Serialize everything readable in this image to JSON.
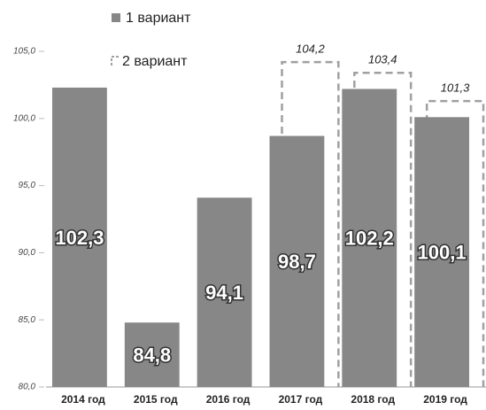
{
  "chart_data": {
    "type": "bar",
    "categories": [
      "2014 год",
      "2015 год",
      "2016 год",
      "2017 год",
      "2018 год",
      "2019 год"
    ],
    "series": [
      {
        "name": "1 вариант",
        "color": "#878787",
        "values": [
          102.3,
          84.8,
          94.1,
          98.7,
          102.2,
          100.1
        ],
        "value_labels": [
          "102,3",
          "84,8",
          "94,1",
          "98,7",
          "102,2",
          "100,1"
        ]
      },
      {
        "name": "2 вариант",
        "color": "#a0a0a0",
        "values": [
          null,
          null,
          null,
          104.2,
          103.4,
          101.3
        ],
        "value_labels": [
          null,
          null,
          null,
          "104,2",
          "103,4",
          "101,3"
        ]
      }
    ],
    "ylim": [
      80,
      105
    ],
    "yticks": [
      {
        "value": 80,
        "label": "80,0"
      },
      {
        "value": 85,
        "label": "85,0"
      },
      {
        "value": 90,
        "label": "90,0"
      },
      {
        "value": 95,
        "label": "95,0"
      },
      {
        "value": 100,
        "label": "100,0"
      },
      {
        "value": 105,
        "label": "105,0"
      }
    ]
  }
}
